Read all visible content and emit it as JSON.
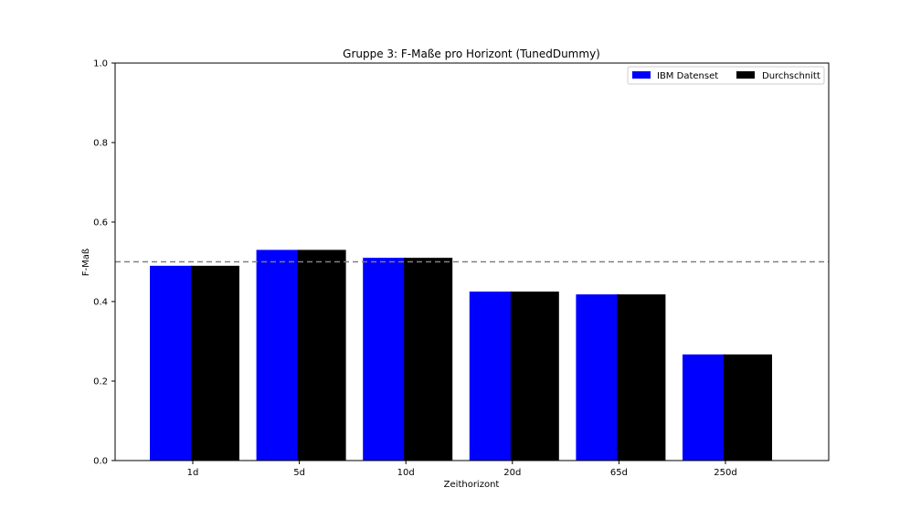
{
  "chart_data": {
    "type": "bar",
    "title": "Gruppe 3: F-Maße pro Horizont (TunedDummy)",
    "xlabel": "Zeithorizont",
    "ylabel": "F-Maß",
    "categories": [
      "1d",
      "5d",
      "10d",
      "20d",
      "65d",
      "250d"
    ],
    "series": [
      {
        "name": "IBM Datenset",
        "color": "#0000ff",
        "values": [
          0.49,
          0.53,
          0.51,
          0.425,
          0.418,
          0.267
        ]
      },
      {
        "name": "Durchschnitt",
        "color": "#000000",
        "values": [
          0.49,
          0.53,
          0.51,
          0.425,
          0.418,
          0.267
        ]
      }
    ],
    "ylim": [
      0,
      1.0
    ],
    "yticks": [
      "0.0",
      "0.2",
      "0.4",
      "0.6",
      "0.8",
      "1.0"
    ],
    "reference_line": {
      "value": 0.5,
      "style": "dashed",
      "color": "#808080"
    },
    "grid": false,
    "legend_position": "top-right"
  }
}
